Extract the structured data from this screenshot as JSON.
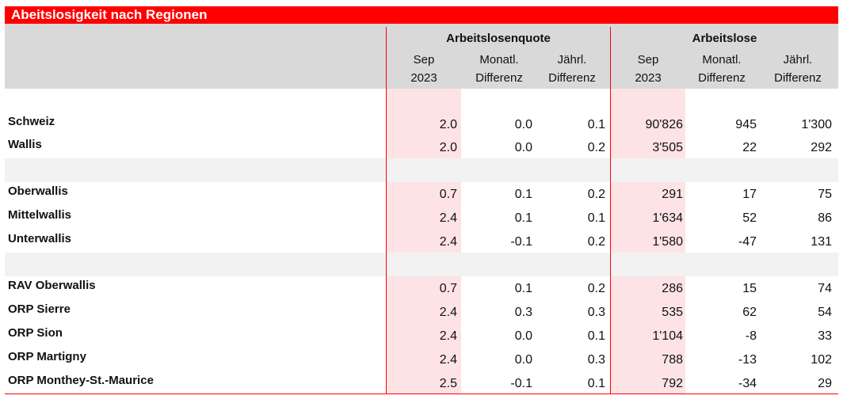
{
  "title": "Abeitslosigkeit nach Regionen",
  "groups": [
    "Arbeitslosenquote",
    "Arbeitslose"
  ],
  "subheaders": [
    {
      "line1": "Sep",
      "line2": "2023"
    },
    {
      "line1": "Monatl.",
      "line2": "Differenz"
    },
    {
      "line1": "Jährl.",
      "line2": "Differenz"
    },
    {
      "line1": "Sep",
      "line2": "2023"
    },
    {
      "line1": "Monatl.",
      "line2": "Differenz"
    },
    {
      "line1": "Jährl.",
      "line2": "Differenz"
    }
  ],
  "rows": [
    {
      "label": "Schweiz",
      "values": [
        "2.0",
        "0.0",
        "0.1",
        "90'826",
        "945",
        "1'300"
      ]
    },
    {
      "label": "Wallis",
      "values": [
        "2.0",
        "0.0",
        "0.2",
        "3'505",
        "22",
        "292"
      ]
    },
    {
      "label": "Oberwallis",
      "values": [
        "0.7",
        "0.1",
        "0.2",
        "291",
        "17",
        "75"
      ]
    },
    {
      "label": "Mittelwallis",
      "values": [
        "2.4",
        "0.1",
        "0.1",
        "1'634",
        "52",
        "86"
      ]
    },
    {
      "label": "Unterwallis",
      "values": [
        "2.4",
        "-0.1",
        "0.2",
        "1'580",
        "-47",
        "131"
      ]
    },
    {
      "label": "RAV Oberwallis",
      "values": [
        "0.7",
        "0.1",
        "0.2",
        "286",
        "15",
        "74"
      ]
    },
    {
      "label": "ORP Sierre",
      "values": [
        "2.4",
        "0.3",
        "0.3",
        "535",
        "62",
        "54"
      ]
    },
    {
      "label": "ORP Sion",
      "values": [
        "2.4",
        "0.0",
        "0.1",
        "1'104",
        "-8",
        "33"
      ]
    },
    {
      "label": "ORP Martigny",
      "values": [
        "2.4",
        "0.0",
        "0.3",
        "788",
        "-13",
        "102"
      ]
    },
    {
      "label": "ORP Monthey-St.-Maurice",
      "values": [
        "2.5",
        "-0.1",
        "0.1",
        "792",
        "-34",
        "29"
      ]
    }
  ],
  "colors": {
    "accent": "#ff0000",
    "highlight": "#fde3e5",
    "header_bg": "#d9d9d9"
  }
}
